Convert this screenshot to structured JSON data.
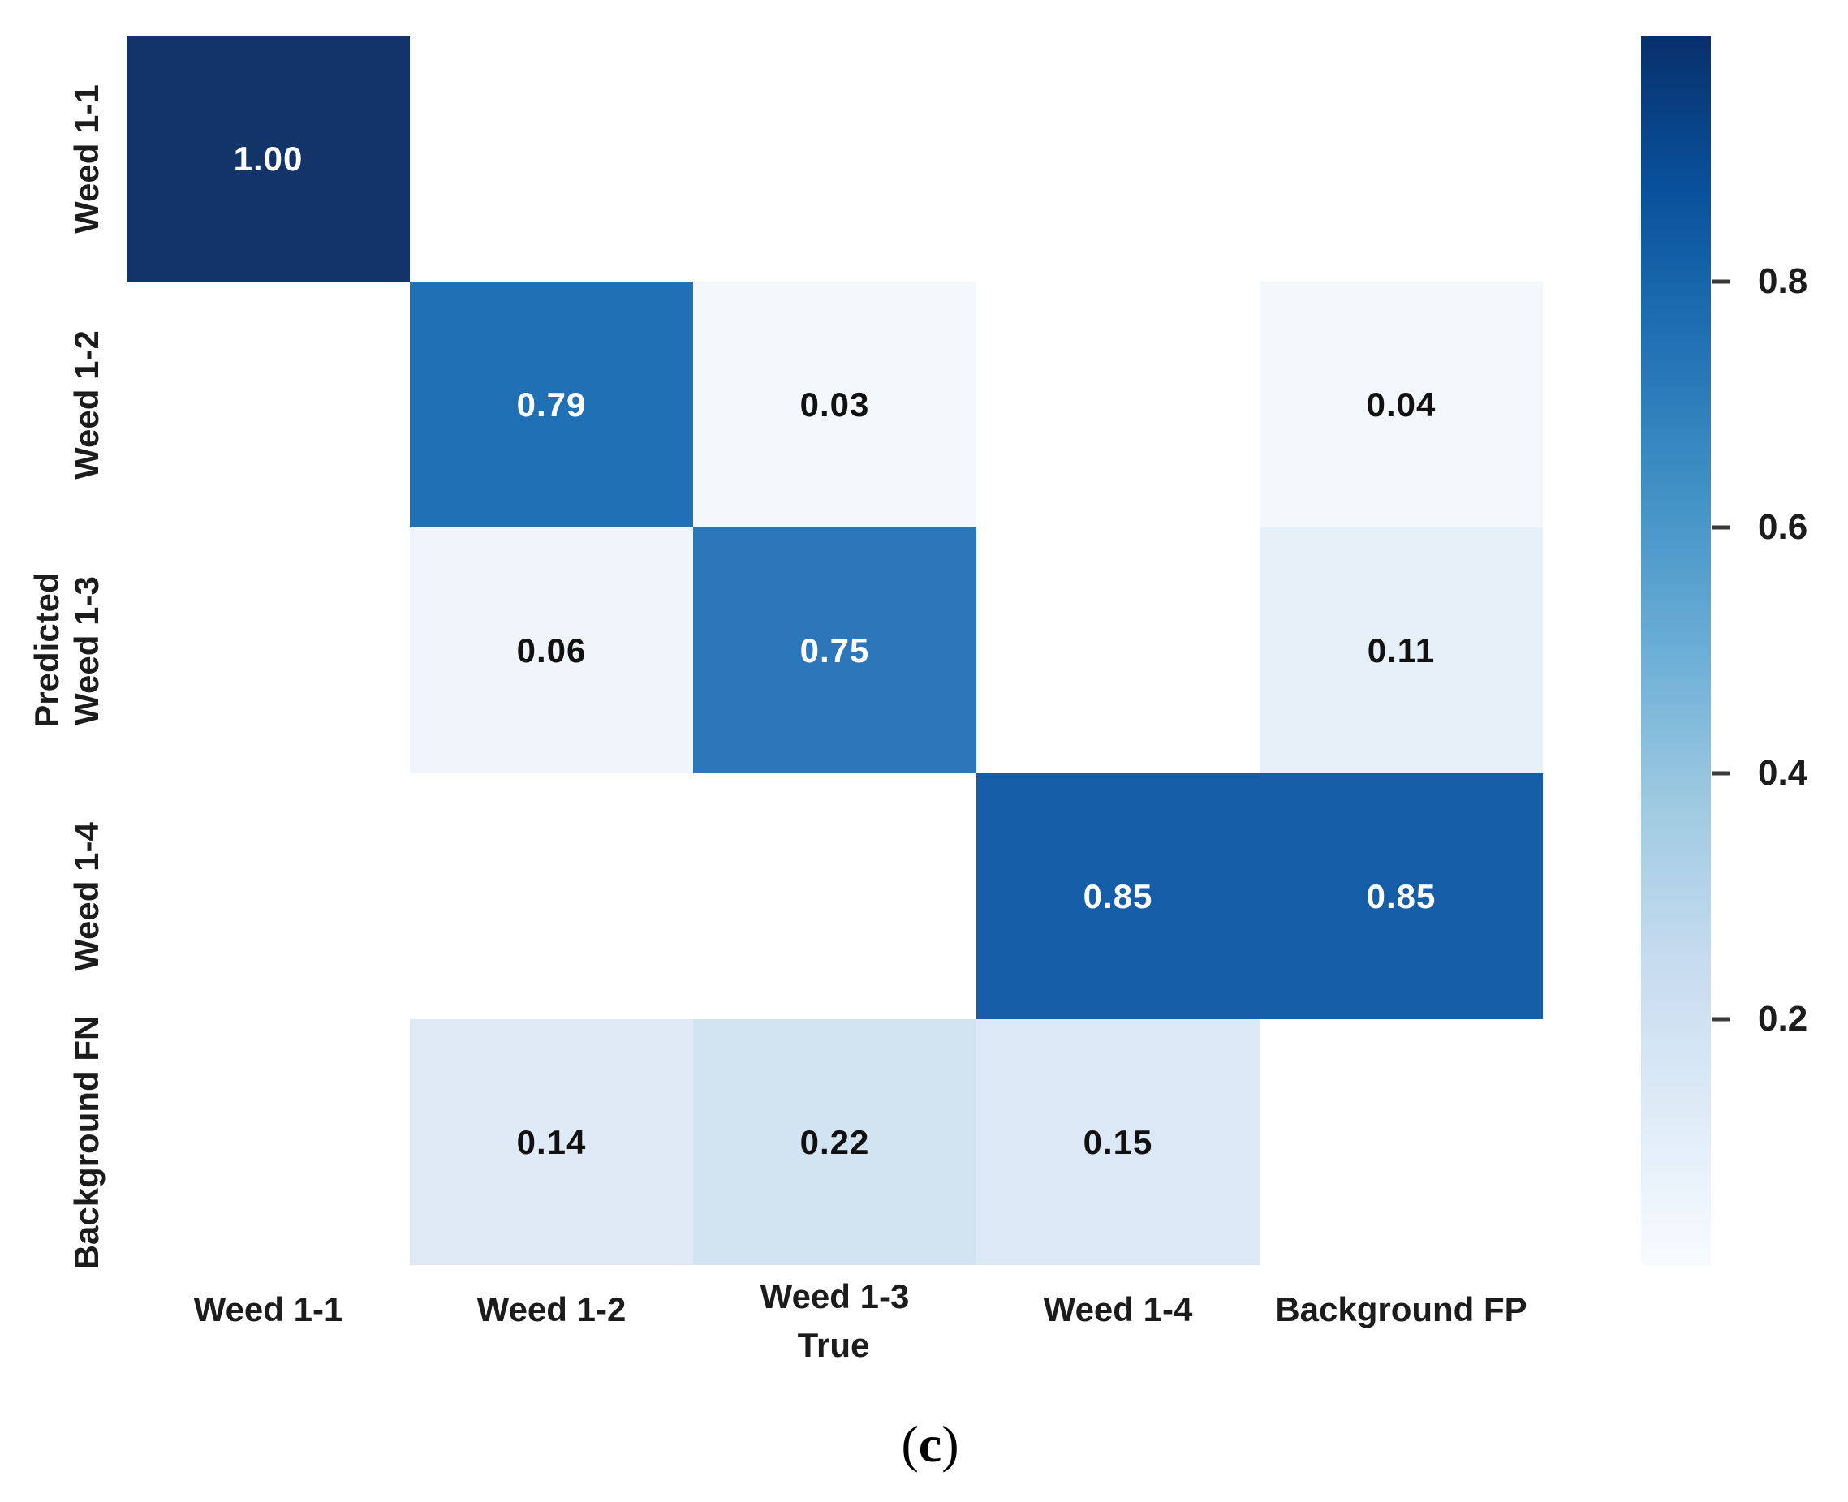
{
  "page": {
    "background": "#ffffff",
    "caption_open": "(",
    "caption_letter": "c",
    "caption_close": ")"
  },
  "chart_data": {
    "type": "heatmap",
    "title": "",
    "xlabel": "True",
    "ylabel": "Predicted",
    "x_categories": [
      "Weed 1-1",
      "Weed 1-2",
      "Weed 1-3",
      "Weed 1-4",
      "Background FP"
    ],
    "y_categories": [
      "Weed 1-1",
      "Weed 1-2",
      "Weed 1-3",
      "Weed 1-4",
      "Background FN"
    ],
    "matrix": [
      [
        1.0,
        null,
        null,
        null,
        null
      ],
      [
        null,
        0.79,
        0.03,
        null,
        0.04
      ],
      [
        null,
        0.06,
        0.75,
        null,
        0.11
      ],
      [
        null,
        null,
        null,
        0.85,
        0.85
      ],
      [
        null,
        0.14,
        0.22,
        0.15,
        null
      ]
    ],
    "colormap": "Blues",
    "vmin": 0,
    "vmax": 1,
    "grid": false,
    "legend_position": "right-colorbar",
    "empty_cell_color": "#ffffff"
  },
  "cells": [
    {
      "row": 0,
      "col": 0,
      "label": "1.00",
      "bg": "#123469",
      "fg": "#ffffff"
    },
    {
      "row": 1,
      "col": 1,
      "label": "0.79",
      "bg": "#1f70b4",
      "fg": "#ffffff"
    },
    {
      "row": 1,
      "col": 2,
      "label": "0.03",
      "bg": "#f4f8fd",
      "fg": "#111111"
    },
    {
      "row": 1,
      "col": 4,
      "label": "0.04",
      "bg": "#f4f8fd",
      "fg": "#111111"
    },
    {
      "row": 2,
      "col": 1,
      "label": "0.06",
      "bg": "#eff5fb",
      "fg": "#111111"
    },
    {
      "row": 2,
      "col": 2,
      "label": "0.75",
      "bg": "#2b77b9",
      "fg": "#ffffff"
    },
    {
      "row": 2,
      "col": 4,
      "label": "0.11",
      "bg": "#e7eff8",
      "fg": "#111111"
    },
    {
      "row": 3,
      "col": 3,
      "label": "0.85",
      "bg": "#155da7",
      "fg": "#ffffff"
    },
    {
      "row": 3,
      "col": 4,
      "label": "0.85",
      "bg": "#155da7",
      "fg": "#ffffff"
    },
    {
      "row": 4,
      "col": 1,
      "label": "0.14",
      "bg": "#dfeaf6",
      "fg": "#111111"
    },
    {
      "row": 4,
      "col": 2,
      "label": "0.22",
      "bg": "#d2e3f2",
      "fg": "#111111"
    },
    {
      "row": 4,
      "col": 3,
      "label": "0.15",
      "bg": "#dce8f5",
      "fg": "#111111"
    }
  ],
  "colorbar": {
    "tick_labels": [
      "0.8",
      "0.6",
      "0.4",
      "0.2"
    ],
    "tick_values": [
      0.8,
      0.6,
      0.4,
      0.2
    ],
    "gradient_top_to_bottom": [
      "#08306b",
      "#08519c",
      "#2171b5",
      "#4292c6",
      "#6baed6",
      "#9ecae1",
      "#c6dbef",
      "#deebf7",
      "#f7fbff"
    ]
  }
}
